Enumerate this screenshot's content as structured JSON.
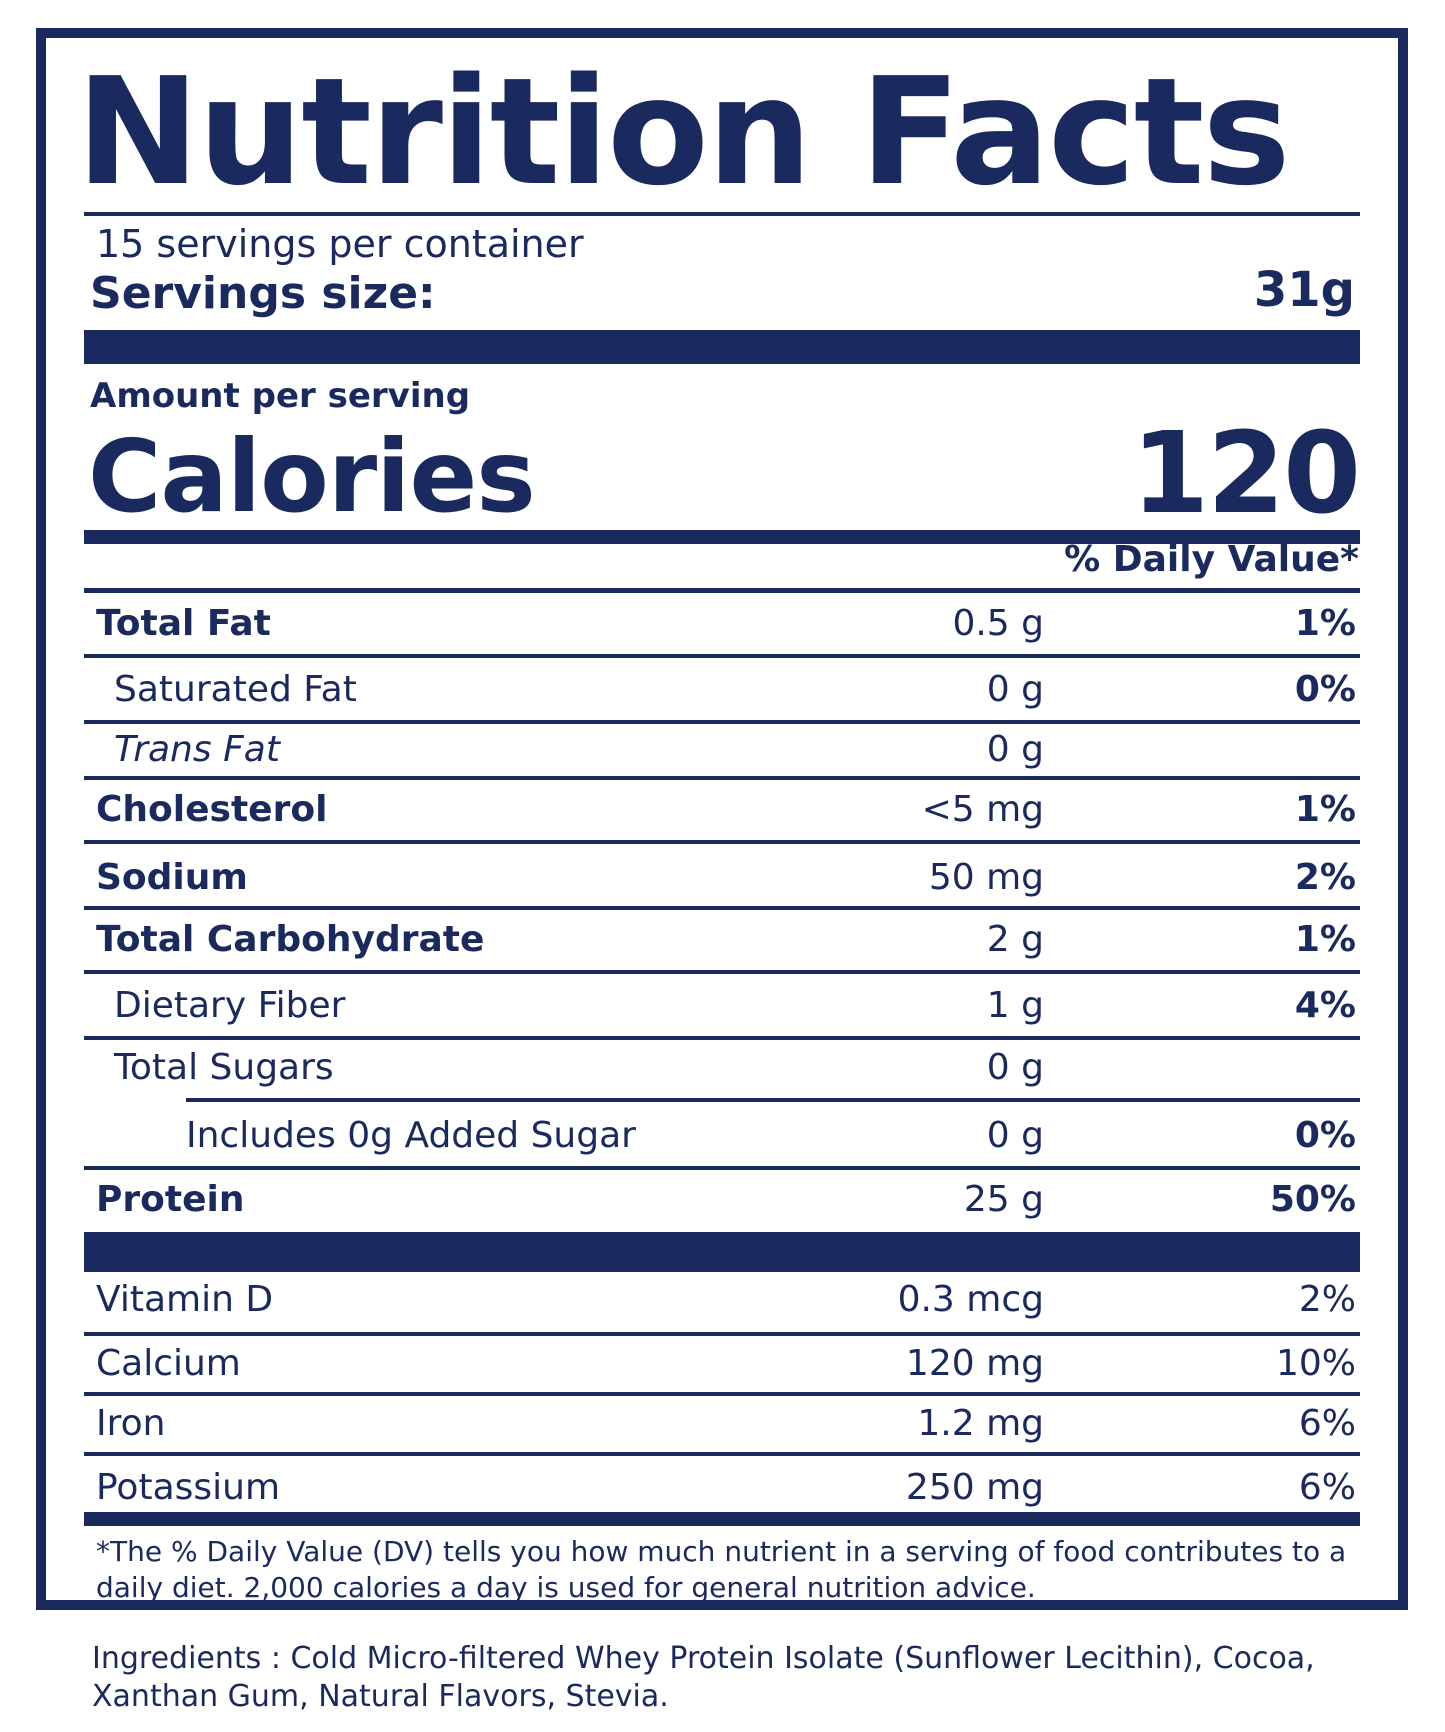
{
  "header": {
    "title": "Nutrition Facts"
  },
  "serving": {
    "per_container": "15 servings per container",
    "size_label": "Servings size:",
    "size_value": "31g"
  },
  "calories": {
    "amount_per_serving": "Amount per serving",
    "label": "Calories",
    "value": "120"
  },
  "daily_value_header": "% Daily Value*",
  "nutrients": [
    {
      "name": "Total Fat",
      "amount": "0.5 g",
      "dv": "1%"
    },
    {
      "name": "Saturated Fat",
      "amount": "0 g",
      "dv": "0%"
    },
    {
      "name": "Trans Fat",
      "amount": "0 g",
      "dv": ""
    },
    {
      "name": "Cholesterol",
      "amount": "<5 mg",
      "dv": "1%"
    },
    {
      "name": "Sodium",
      "amount": "50 mg",
      "dv": "2%"
    },
    {
      "name": "Total Carbohydrate",
      "amount": "2 g",
      "dv": "1%"
    },
    {
      "name": "Dietary Fiber",
      "amount": "1 g",
      "dv": "4%"
    },
    {
      "name": "Total Sugars",
      "amount": "0 g",
      "dv": ""
    },
    {
      "name": "Includes 0g Added Sugar",
      "amount": "0 g",
      "dv": "0%"
    },
    {
      "name": "Protein",
      "amount": "25 g",
      "dv": "50%"
    }
  ],
  "vitamins": [
    {
      "name": "Vitamin D",
      "amount": "0.3 mcg",
      "dv": "2%"
    },
    {
      "name": "Calcium",
      "amount": "120 mg",
      "dv": "10%"
    },
    {
      "name": "Iron",
      "amount": "1.2 mg",
      "dv": "6%"
    },
    {
      "name": "Potassium",
      "amount": "250 mg",
      "dv": "6%"
    }
  ],
  "footnote": "*The % Daily Value (DV) tells you how much nutrient in a serving of food contributes to a daily diet. 2,000 calories a day is used for general nutrition advice.",
  "ingredients": "Ingredients :  Cold Micro-filtered Whey Protein Isolate (Sunflower Lecithin), Cocoa, Xanthan Gum, Natural Flavors, Stevia.",
  "colors": {
    "ink": "#1b2a5e",
    "background": "#ffffff"
  }
}
